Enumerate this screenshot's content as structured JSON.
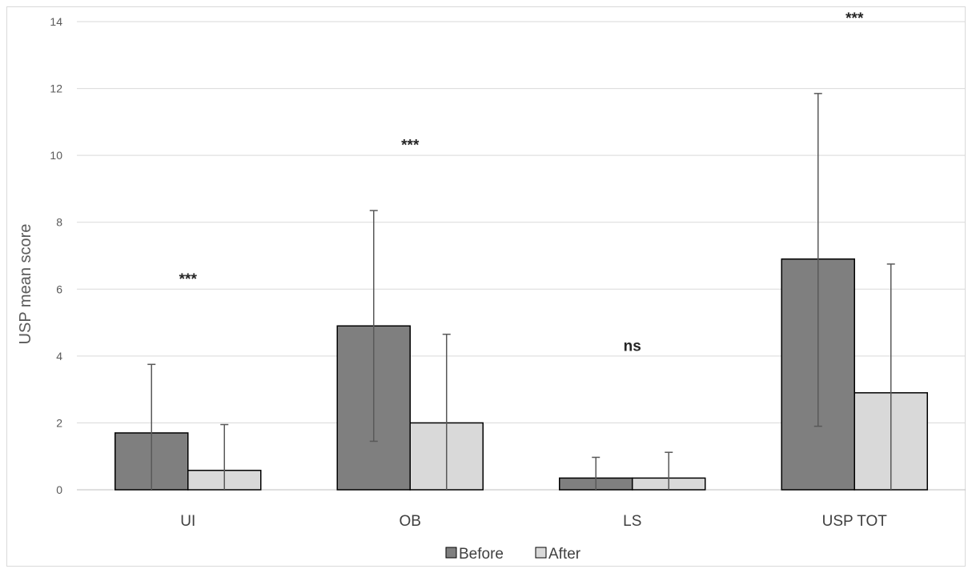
{
  "chart_data": {
    "type": "bar",
    "categories": [
      "UI",
      "OB",
      "LS",
      "USP TOT"
    ],
    "series": [
      {
        "name": "Before",
        "color": "#7f7f7f",
        "values": [
          1.7,
          4.9,
          0.35,
          6.9
        ],
        "error_upper": [
          3.75,
          8.35,
          0.97,
          11.85
        ],
        "error_lower": [
          0,
          1.45,
          0,
          1.9
        ]
      },
      {
        "name": "After",
        "color": "#d9d9d9",
        "values": [
          0.58,
          2.0,
          0.35,
          2.9
        ],
        "error_upper": [
          1.95,
          4.65,
          1.12,
          6.75
        ],
        "error_lower": [
          0,
          0,
          0,
          0
        ]
      }
    ],
    "significance": [
      "***",
      "***",
      "ns",
      "***"
    ],
    "significance_y": [
      6.3,
      10.3,
      4.3,
      14.1
    ],
    "ylabel": "USP mean score",
    "xlabel": "",
    "title": "",
    "ylim": [
      0,
      14
    ],
    "yticks": [
      "0",
      "2",
      "4",
      "6",
      "8",
      "10",
      "12",
      "14"
    ],
    "grid": true,
    "legend_position": "bottom"
  }
}
